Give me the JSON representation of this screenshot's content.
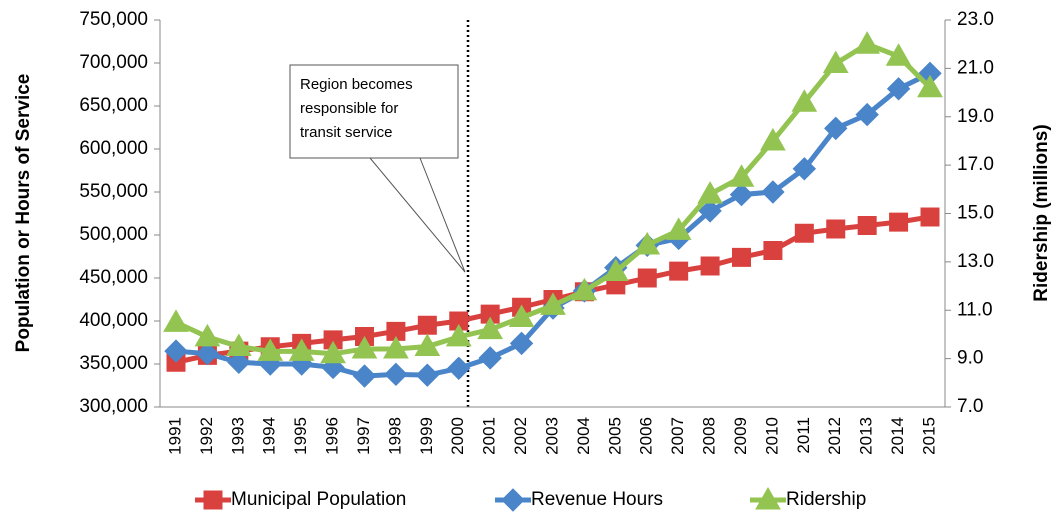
{
  "chart_data": {
    "type": "line",
    "y_label": "Population or Hours of Service",
    "y2_label": "Ridership (millions)",
    "annotation": [
      "Region becomes",
      "responsible for",
      "transit service"
    ],
    "categories": [
      "1991",
      "1992",
      "1993",
      "1994",
      "1995",
      "1996",
      "1997",
      "1998",
      "1999",
      "2000",
      "2001",
      "2002",
      "2003",
      "2004",
      "2005",
      "2006",
      "2007",
      "2008",
      "2009",
      "2010",
      "2011",
      "2012",
      "2013",
      "2014",
      "2015"
    ],
    "ylim": [
      300000,
      750000
    ],
    "yticks": [
      {
        "value": 300000,
        "label": "300,000"
      },
      {
        "value": 350000,
        "label": "350,000"
      },
      {
        "value": 400000,
        "label": "400,000"
      },
      {
        "value": 450000,
        "label": "450,000"
      },
      {
        "value": 500000,
        "label": "500,000"
      },
      {
        "value": 550000,
        "label": "550,000"
      },
      {
        "value": 600000,
        "label": "600,000"
      },
      {
        "value": 650000,
        "label": "650,000"
      },
      {
        "value": 700000,
        "label": "700,000"
      },
      {
        "value": 750000,
        "label": "750,000"
      }
    ],
    "y2lim": [
      7,
      23
    ],
    "y2ticks": [
      {
        "value": 7,
        "label": "7.0"
      },
      {
        "value": 9,
        "label": "9.0"
      },
      {
        "value": 11,
        "label": "11.0"
      },
      {
        "value": 13,
        "label": "13.0"
      },
      {
        "value": 15,
        "label": "15.0"
      },
      {
        "value": 17,
        "label": "17.0"
      },
      {
        "value": 19,
        "label": "19.0"
      },
      {
        "value": 21,
        "label": "21.0"
      },
      {
        "value": 23,
        "label": "23.0"
      }
    ],
    "series": [
      {
        "name": "Municipal Population",
        "color": "#d9413f",
        "marker": "square",
        "values": [
          352000,
          360000,
          365000,
          370000,
          374000,
          378000,
          382000,
          388000,
          395000,
          400000,
          408000,
          416000,
          425000,
          434000,
          442000,
          450000,
          458000,
          464000,
          474000,
          482000,
          502000,
          507000,
          511000,
          515000,
          521000
        ]
      },
      {
        "name": "Revenue Hours",
        "color": "#4a84c9",
        "marker": "diamond",
        "values": [
          365000,
          362000,
          352000,
          350000,
          350000,
          346000,
          336000,
          338000,
          337000,
          345000,
          357000,
          374000,
          415000,
          435000,
          462000,
          488000,
          496000,
          528000,
          547000,
          550000,
          577000,
          624000,
          640000,
          670000,
          688000
        ]
      },
      {
        "name": "Ridership",
        "color": "#93c451",
        "marker": "triangle",
        "axis": "y2",
        "values": [
          10.5,
          9.9,
          9.5,
          9.3,
          9.3,
          9.2,
          9.4,
          9.4,
          9.5,
          9.9,
          10.2,
          10.7,
          11.2,
          11.8,
          12.6,
          13.7,
          14.3,
          15.8,
          16.5,
          18.0,
          19.6,
          21.2,
          22.0,
          21.5,
          20.2
        ]
      }
    ]
  }
}
